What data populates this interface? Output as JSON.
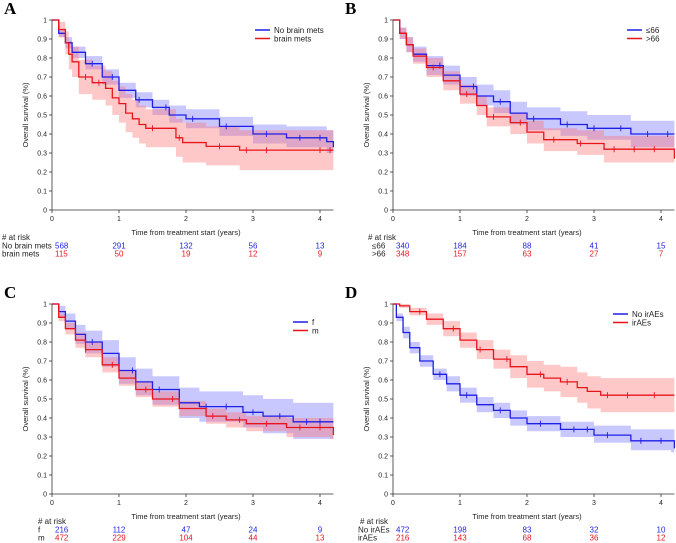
{
  "colors": {
    "blue": "#1f1fe6",
    "red": "#e8141b",
    "blue_ci": "rgba(110,110,255,0.38)",
    "red_ci": "rgba(255,110,110,0.38)"
  },
  "chart_data": [
    {
      "type": "line",
      "panel_letter": "A",
      "xlabel": "Time from treatment start (years)",
      "ylabel": "Overall survival (%)",
      "xlim": [
        0,
        4.2
      ],
      "ylim": [
        0,
        1
      ],
      "xticks": [
        "0",
        "1",
        "2",
        "3",
        "4"
      ],
      "yticks": [
        "0",
        "0.1",
        "0.2",
        "0.3",
        "0.4",
        "0.5",
        "0.6",
        "0.7",
        "0.8",
        "0.9",
        "1"
      ],
      "legend_placement": "top-right",
      "risk_title": "# at risk",
      "series": [
        {
          "name": "No brain mets",
          "color": "blue",
          "t": [
            0,
            0.1,
            0.2,
            0.3,
            0.5,
            0.75,
            1,
            1.25,
            1.5,
            1.75,
            2,
            2.5,
            3,
            3.5,
            4.1,
            4.2
          ],
          "s": [
            1,
            0.93,
            0.88,
            0.83,
            0.77,
            0.7,
            0.63,
            0.58,
            0.54,
            0.5,
            0.48,
            0.44,
            0.4,
            0.38,
            0.36,
            0.33
          ],
          "lower": [
            1,
            0.91,
            0.85,
            0.8,
            0.74,
            0.66,
            0.59,
            0.54,
            0.5,
            0.46,
            0.43,
            0.39,
            0.35,
            0.33,
            0.3,
            0.26
          ],
          "upper": [
            1,
            0.95,
            0.91,
            0.86,
            0.81,
            0.74,
            0.67,
            0.62,
            0.58,
            0.55,
            0.53,
            0.49,
            0.45,
            0.44,
            0.42,
            0.4
          ],
          "censor": [
            0.6,
            0.9,
            1.3,
            1.7,
            2.1,
            2.6,
            3.2,
            3.7,
            4.0
          ],
          "at_risk": [
            "568",
            "291",
            "132",
            "56",
            "13"
          ]
        },
        {
          "name": "brain mets",
          "color": "red",
          "t": [
            0,
            0.1,
            0.2,
            0.25,
            0.3,
            0.4,
            0.6,
            0.8,
            0.9,
            1,
            1.1,
            1.2,
            1.3,
            1.4,
            1.85,
            1.95,
            2.3,
            2.8,
            4.2
          ],
          "s": [
            1,
            0.95,
            0.88,
            0.82,
            0.78,
            0.7,
            0.67,
            0.64,
            0.59,
            0.56,
            0.51,
            0.48,
            0.45,
            0.43,
            0.38,
            0.355,
            0.335,
            0.315,
            0.315
          ],
          "lower": [
            1,
            0.91,
            0.82,
            0.74,
            0.7,
            0.61,
            0.58,
            0.55,
            0.5,
            0.46,
            0.41,
            0.38,
            0.35,
            0.33,
            0.28,
            0.25,
            0.235,
            0.21,
            0.21
          ],
          "upper": [
            1,
            0.99,
            0.94,
            0.89,
            0.86,
            0.79,
            0.76,
            0.73,
            0.68,
            0.65,
            0.61,
            0.58,
            0.55,
            0.53,
            0.48,
            0.46,
            0.44,
            0.42,
            0.42
          ],
          "censor": [
            0.5,
            0.7,
            1.5,
            1.9,
            2.5,
            2.9,
            3.2,
            4.0,
            4.15
          ],
          "at_risk": [
            "115",
            "50",
            "19",
            "12",
            "9"
          ]
        }
      ]
    },
    {
      "type": "line",
      "panel_letter": "B",
      "xlabel": "Time from treatment start (years)",
      "ylabel": "Overall survival (%)",
      "xlim": [
        0,
        4.2
      ],
      "ylim": [
        0,
        1
      ],
      "xticks": [
        "0",
        "1",
        "2",
        "3",
        "4"
      ],
      "yticks": [
        "0",
        "0.1",
        "0.2",
        "0.3",
        "0.4",
        "0.5",
        "0.6",
        "0.7",
        "0.8",
        "0.9",
        "1"
      ],
      "legend_placement": "top-right",
      "risk_title": "# at risk",
      "series": [
        {
          "name": "≤66",
          "color": "blue",
          "t": [
            0,
            0.1,
            0.2,
            0.3,
            0.5,
            0.75,
            1,
            1.25,
            1.5,
            1.75,
            2,
            2.5,
            2.9,
            3.55,
            4.2
          ],
          "s": [
            1,
            0.93,
            0.87,
            0.82,
            0.76,
            0.71,
            0.65,
            0.6,
            0.57,
            0.51,
            0.48,
            0.45,
            0.43,
            0.4,
            0.4
          ],
          "lower": [
            1,
            0.9,
            0.83,
            0.78,
            0.71,
            0.66,
            0.6,
            0.55,
            0.51,
            0.45,
            0.42,
            0.39,
            0.37,
            0.33,
            0.33
          ],
          "upper": [
            1,
            0.96,
            0.91,
            0.86,
            0.81,
            0.76,
            0.7,
            0.66,
            0.63,
            0.57,
            0.54,
            0.52,
            0.5,
            0.47,
            0.47
          ],
          "censor": [
            0.7,
            1.2,
            1.6,
            2.1,
            2.6,
            3.0,
            3.4,
            3.8,
            4.1
          ],
          "at_risk": [
            "340",
            "184",
            "88",
            "41",
            "15"
          ]
        },
        {
          "name": ">66",
          "color": "red",
          "t": [
            0,
            0.1,
            0.2,
            0.3,
            0.5,
            0.75,
            1,
            1.25,
            1.4,
            1.75,
            2,
            2.25,
            2.75,
            3.15,
            4.15,
            4.2
          ],
          "s": [
            1,
            0.93,
            0.87,
            0.81,
            0.75,
            0.68,
            0.61,
            0.55,
            0.49,
            0.46,
            0.41,
            0.37,
            0.35,
            0.32,
            0.32,
            0.27
          ],
          "lower": [
            1,
            0.9,
            0.83,
            0.77,
            0.7,
            0.63,
            0.56,
            0.5,
            0.44,
            0.4,
            0.35,
            0.31,
            0.29,
            0.25,
            0.25,
            0.16
          ],
          "upper": [
            1,
            0.96,
            0.91,
            0.85,
            0.8,
            0.73,
            0.66,
            0.6,
            0.54,
            0.51,
            0.47,
            0.43,
            0.42,
            0.39,
            0.39,
            0.36
          ],
          "censor": [
            0.6,
            1.1,
            1.5,
            1.9,
            2.4,
            2.8,
            3.3,
            3.6,
            3.9
          ],
          "at_risk": [
            "348",
            "157",
            "63",
            "27",
            "7"
          ]
        }
      ]
    },
    {
      "type": "line",
      "panel_letter": "C",
      "xlabel": "Time from treatment start (years)",
      "ylabel": "Overall survival (%)",
      "xlim": [
        0,
        4.2
      ],
      "ylim": [
        0,
        1
      ],
      "xticks": [
        "0",
        "1",
        "2",
        "3",
        "4"
      ],
      "yticks": [
        "0",
        "0.1",
        "0.2",
        "0.3",
        "0.4",
        "0.5",
        "0.6",
        "0.7",
        "0.8",
        "0.9",
        "1"
      ],
      "legend_placement": "top-right",
      "risk_title": "# at risk",
      "series": [
        {
          "name": "f",
          "color": "blue",
          "t": [
            0,
            0.1,
            0.2,
            0.35,
            0.5,
            0.75,
            1,
            1.25,
            1.5,
            1.9,
            2.2,
            2.85,
            3.15,
            3.6,
            4.2
          ],
          "s": [
            1,
            0.96,
            0.91,
            0.84,
            0.8,
            0.74,
            0.65,
            0.59,
            0.55,
            0.48,
            0.46,
            0.43,
            0.41,
            0.38,
            0.38
          ],
          "lower": [
            1,
            0.93,
            0.87,
            0.79,
            0.74,
            0.67,
            0.58,
            0.52,
            0.47,
            0.4,
            0.38,
            0.35,
            0.32,
            0.29,
            0.28
          ],
          "upper": [
            1,
            0.99,
            0.95,
            0.89,
            0.86,
            0.81,
            0.72,
            0.66,
            0.62,
            0.56,
            0.54,
            0.52,
            0.5,
            0.48,
            0.48
          ],
          "censor": [
            0.6,
            1.2,
            1.6,
            2.3,
            2.6,
            3.0,
            3.4,
            3.8,
            4.0
          ],
          "at_risk": [
            "216",
            "112",
            "47",
            "24",
            "9"
          ]
        },
        {
          "name": "m",
          "color": "red",
          "t": [
            0,
            0.1,
            0.2,
            0.35,
            0.5,
            0.75,
            1,
            1.25,
            1.5,
            1.9,
            2.3,
            2.6,
            2.9,
            3.5,
            4.15,
            4.2
          ],
          "s": [
            1,
            0.93,
            0.87,
            0.81,
            0.76,
            0.68,
            0.61,
            0.55,
            0.5,
            0.45,
            0.41,
            0.39,
            0.37,
            0.35,
            0.35,
            0.31
          ],
          "lower": [
            1,
            0.91,
            0.84,
            0.77,
            0.72,
            0.64,
            0.57,
            0.51,
            0.46,
            0.41,
            0.37,
            0.35,
            0.33,
            0.3,
            0.29,
            0.24
          ],
          "upper": [
            1,
            0.95,
            0.9,
            0.85,
            0.8,
            0.72,
            0.65,
            0.59,
            0.54,
            0.49,
            0.45,
            0.43,
            0.41,
            0.4,
            0.4,
            0.38
          ],
          "censor": [
            0.5,
            0.9,
            1.4,
            1.8,
            2.4,
            2.8,
            3.2,
            3.7,
            4.0
          ],
          "at_risk": [
            "472",
            "229",
            "104",
            "44",
            "13"
          ]
        }
      ]
    },
    {
      "type": "line",
      "panel_letter": "D",
      "xlabel": "Time from treatment start (years)",
      "ylabel": "Overall survival (%)",
      "xlim": [
        0,
        4.2
      ],
      "ylim": [
        0,
        1
      ],
      "xticks": [
        "0",
        "1",
        "2",
        "3",
        "4"
      ],
      "yticks": [
        "0",
        "0.1",
        "0.2",
        "0.3",
        "0.4",
        "0.5",
        "0.6",
        "0.7",
        "0.8",
        "0.9",
        "1"
      ],
      "legend_placement": "top-right",
      "risk_title": "# at risk",
      "series": [
        {
          "name": "No irAEs",
          "color": "blue",
          "t": [
            0,
            0.05,
            0.15,
            0.25,
            0.4,
            0.6,
            0.8,
            1,
            1.25,
            1.5,
            1.75,
            2,
            2.5,
            3,
            3.55,
            4.15,
            4.2
          ],
          "s": [
            1,
            0.93,
            0.85,
            0.77,
            0.7,
            0.63,
            0.58,
            0.52,
            0.47,
            0.44,
            0.4,
            0.37,
            0.34,
            0.31,
            0.28,
            0.28,
            0.24
          ],
          "lower": [
            1,
            0.91,
            0.82,
            0.74,
            0.67,
            0.6,
            0.54,
            0.48,
            0.43,
            0.4,
            0.36,
            0.33,
            0.3,
            0.27,
            0.23,
            0.22,
            0.17
          ],
          "upper": [
            1,
            0.95,
            0.88,
            0.8,
            0.73,
            0.66,
            0.62,
            0.56,
            0.51,
            0.48,
            0.44,
            0.41,
            0.38,
            0.36,
            0.34,
            0.34,
            0.32
          ],
          "censor": [
            0.7,
            1.1,
            1.6,
            2.2,
            2.7,
            2.9,
            3.2,
            3.7,
            4.0
          ],
          "at_risk": [
            "472",
            "198",
            "83",
            "32",
            "10"
          ]
        },
        {
          "name": "irAEs",
          "color": "red",
          "t": [
            0,
            0.1,
            0.25,
            0.5,
            0.75,
            1,
            1.25,
            1.5,
            1.75,
            2,
            2.25,
            2.5,
            2.75,
            2.9,
            3.1,
            4.2
          ],
          "s": [
            1,
            0.99,
            0.96,
            0.92,
            0.87,
            0.81,
            0.76,
            0.71,
            0.67,
            0.63,
            0.61,
            0.59,
            0.56,
            0.54,
            0.52,
            0.52
          ],
          "lower": [
            1,
            0.98,
            0.94,
            0.89,
            0.83,
            0.77,
            0.71,
            0.66,
            0.61,
            0.56,
            0.54,
            0.51,
            0.48,
            0.45,
            0.43,
            0.43
          ],
          "upper": [
            1,
            1,
            0.98,
            0.95,
            0.91,
            0.85,
            0.81,
            0.76,
            0.73,
            0.7,
            0.68,
            0.67,
            0.64,
            0.62,
            0.61,
            0.61
          ],
          "censor": [
            0.4,
            0.9,
            1.3,
            1.7,
            2.2,
            2.6,
            3.2,
            3.5,
            3.9
          ],
          "at_risk": [
            "216",
            "143",
            "68",
            "36",
            "12"
          ]
        }
      ]
    }
  ]
}
